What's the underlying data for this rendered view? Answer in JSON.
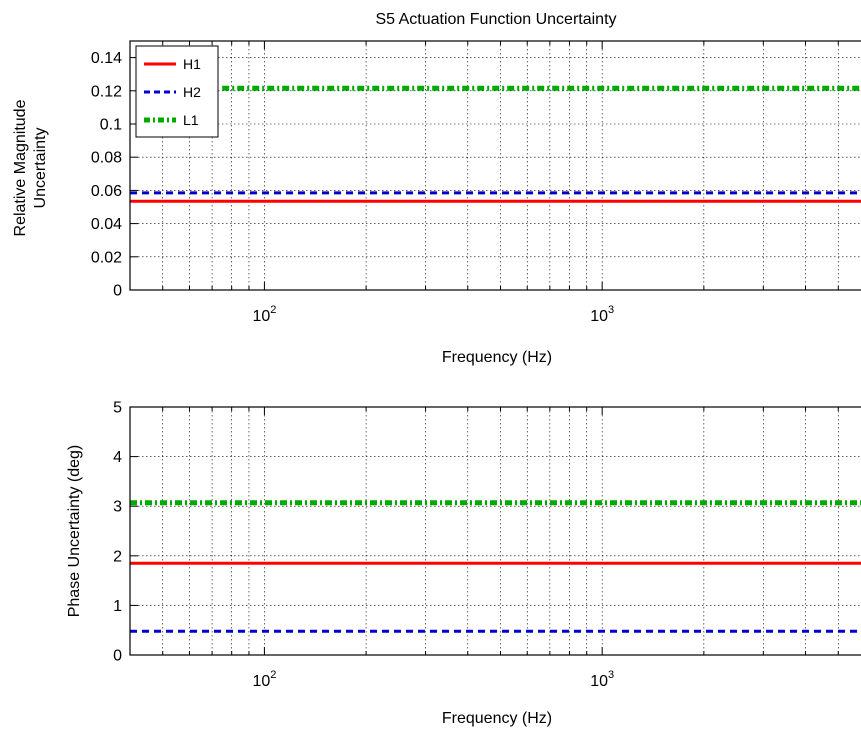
{
  "chart_data": [
    {
      "type": "line",
      "title": "S5 Actuation Function Uncertainty",
      "xlabel": "Frequency (Hz)",
      "ylabel_lines": [
        "Relative Magnitude",
        "Uncertainty"
      ],
      "xscale": "log",
      "xlim": [
        40,
        6000
      ],
      "ylim": [
        0,
        0.15
      ],
      "yticks": [
        0,
        0.02,
        0.04,
        0.06,
        0.08,
        0.1,
        0.12,
        0.14
      ],
      "ytick_labels": [
        "0",
        "0.02",
        "0.04",
        "0.06",
        "0.08",
        "0.1",
        "0.12",
        "0.14"
      ],
      "xticks_major": [
        100,
        1000
      ],
      "xtick_base_labels": [
        "10",
        "10"
      ],
      "xtick_exp_labels": [
        "2",
        "3"
      ],
      "grid": true,
      "legend": {
        "position": "top-left",
        "entries": [
          "H1",
          "H2",
          "L1"
        ]
      },
      "series": [
        {
          "name": "H1",
          "color": "#ff0000",
          "style": "solid",
          "x": [
            40,
            6000
          ],
          "y": [
            0.0535,
            0.0535
          ]
        },
        {
          "name": "H2",
          "color": "#0000cc",
          "style": "dashed",
          "x": [
            40,
            6000
          ],
          "y": [
            0.0585,
            0.0585
          ]
        },
        {
          "name": "L1",
          "color": "#00aa00",
          "style": "dashdot",
          "x": [
            75,
            6000
          ],
          "y": [
            0.1215,
            0.1215
          ]
        }
      ]
    },
    {
      "type": "line",
      "title": "",
      "xlabel": "Frequency (Hz)",
      "ylabel_lines": [
        "Phase Uncertainty (deg)"
      ],
      "xscale": "log",
      "xlim": [
        40,
        6000
      ],
      "ylim": [
        0,
        5
      ],
      "yticks": [
        0,
        1,
        2,
        3,
        4,
        5
      ],
      "ytick_labels": [
        "0",
        "1",
        "2",
        "3",
        "4",
        "5"
      ],
      "xticks_major": [
        100,
        1000
      ],
      "xtick_base_labels": [
        "10",
        "10"
      ],
      "xtick_exp_labels": [
        "2",
        "3"
      ],
      "grid": true,
      "series": [
        {
          "name": "H1",
          "color": "#ff0000",
          "style": "solid",
          "x": [
            40,
            6000
          ],
          "y": [
            1.85,
            1.85
          ]
        },
        {
          "name": "H2",
          "color": "#0000cc",
          "style": "dashed",
          "x": [
            40,
            6000
          ],
          "y": [
            0.48,
            0.48
          ]
        },
        {
          "name": "L1",
          "color": "#00aa00",
          "style": "dashdot",
          "x": [
            40,
            6000
          ],
          "y": [
            3.07,
            3.07
          ]
        }
      ]
    }
  ]
}
